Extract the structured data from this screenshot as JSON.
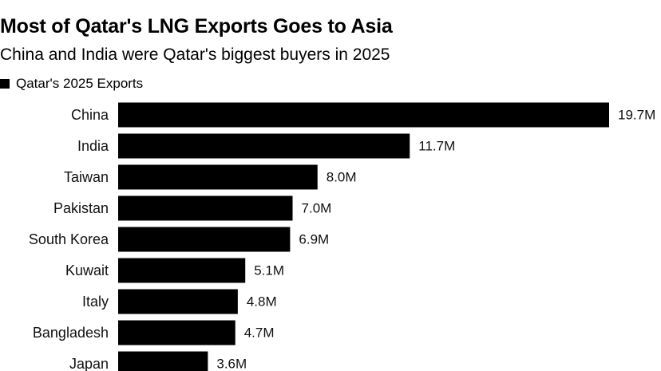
{
  "colors": {
    "bar": "#000000",
    "text": "#111111",
    "background": "#ffffff"
  },
  "chart_data": {
    "type": "bar",
    "orientation": "horizontal",
    "title": "Most of Qatar's LNG Exports Goes to Asia",
    "subtitle": "China and India were Qatar's biggest buyers in 2025",
    "legend": "Qatar's 2025 Exports",
    "legend_position": "top-left",
    "categories": [
      "China",
      "India",
      "Taiwan",
      "Pakistan",
      "South Korea",
      "Kuwait",
      "Italy",
      "Bangladesh",
      "Japan"
    ],
    "values": [
      19.7,
      11.7,
      8.0,
      7.0,
      6.9,
      5.1,
      4.8,
      4.7,
      3.6
    ],
    "value_labels": [
      "19.7M",
      "11.7M",
      "8.0M",
      "7.0M",
      "6.9M",
      "5.1M",
      "4.8M",
      "4.7M",
      "3.6M"
    ],
    "unit": "M",
    "xlabel": "",
    "ylabel": "",
    "xlim": [
      0,
      19.7
    ],
    "grid": false
  }
}
